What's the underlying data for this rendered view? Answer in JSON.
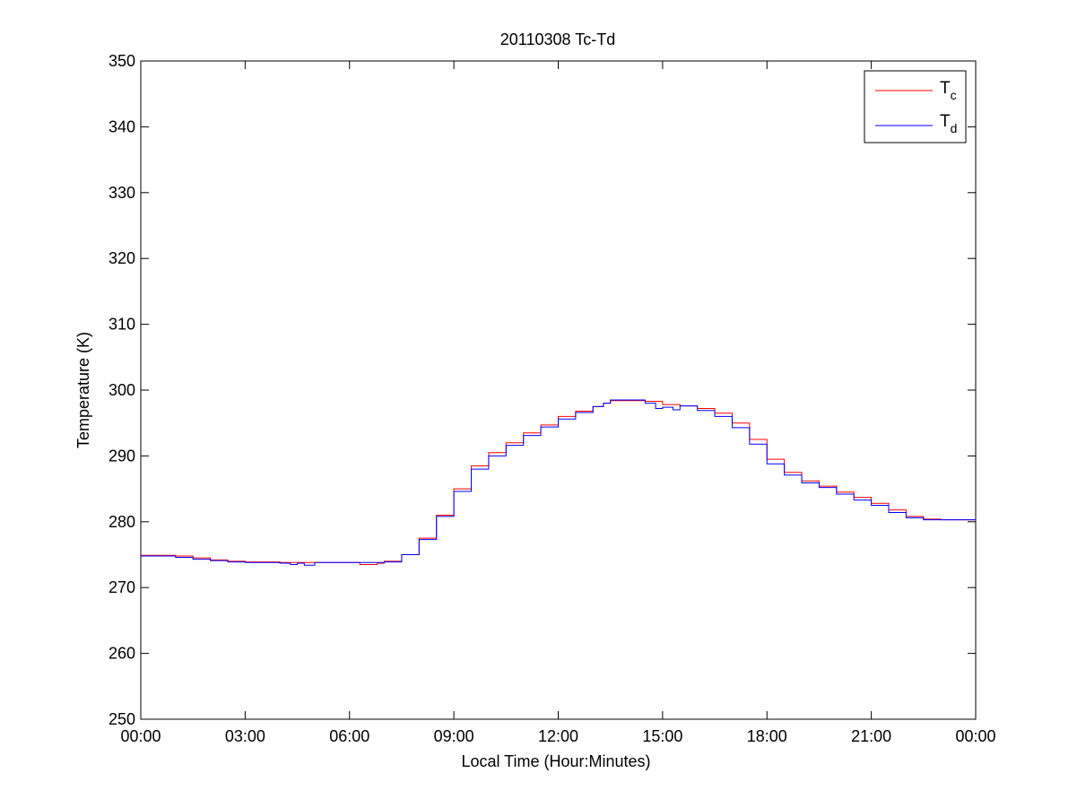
{
  "chart_data": {
    "type": "line",
    "title": "20110308 Tc-Td",
    "xlabel": "Local Time (Hour:Minutes)",
    "ylabel": "Temperature (K)",
    "xlim": [
      0,
      24
    ],
    "ylim": [
      250,
      350
    ],
    "xticks": [
      0,
      3,
      6,
      9,
      12,
      15,
      18,
      21,
      24
    ],
    "xtick_labels": [
      "00:00",
      "03:00",
      "06:00",
      "09:00",
      "12:00",
      "15:00",
      "18:00",
      "21:00",
      "00:00"
    ],
    "yticks": [
      250,
      260,
      270,
      280,
      290,
      300,
      310,
      320,
      330,
      340,
      350
    ],
    "ytick_labels": [
      "250",
      "260",
      "270",
      "280",
      "290",
      "300",
      "310",
      "320",
      "330",
      "340",
      "350"
    ],
    "grid": false,
    "legend_position": "top-right",
    "series": [
      {
        "name": "Tc",
        "legend_main": "T",
        "legend_sub": "c",
        "color": "#ff0000",
        "x": [
          0,
          0.5,
          1.0,
          1.5,
          2.0,
          2.5,
          3.0,
          4.0,
          5.0,
          6.0,
          6.3,
          6.8,
          7.0,
          7.5,
          8.0,
          8.5,
          9.0,
          9.5,
          10.0,
          10.5,
          11.0,
          11.5,
          12.0,
          12.5,
          13.0,
          13.3,
          13.5,
          14.0,
          14.5,
          15.0,
          15.5,
          16.0,
          16.5,
          17.0,
          17.5,
          18.0,
          18.5,
          19.0,
          19.5,
          20.0,
          20.5,
          21.0,
          21.5,
          22.0,
          22.5,
          23.0,
          23.5,
          24.0
        ],
        "y": [
          274.9,
          274.9,
          274.8,
          274.5,
          274.2,
          274.0,
          273.9,
          273.8,
          273.8,
          273.8,
          273.5,
          273.7,
          274.0,
          275.0,
          277.5,
          281.0,
          285.0,
          288.5,
          290.5,
          292.0,
          293.5,
          294.7,
          296.0,
          296.8,
          297.5,
          298.0,
          298.4,
          298.4,
          298.3,
          297.8,
          297.6,
          297.2,
          296.5,
          295.0,
          292.5,
          289.5,
          287.5,
          286.2,
          285.4,
          284.5,
          283.7,
          282.8,
          281.8,
          280.8,
          280.4,
          280.3,
          280.3,
          280.2
        ]
      },
      {
        "name": "Td",
        "legend_main": "T",
        "legend_sub": "d",
        "color": "#0000ff",
        "x": [
          0,
          0.5,
          1.0,
          1.5,
          2.0,
          2.5,
          3.0,
          4.0,
          4.3,
          4.5,
          4.7,
          5.0,
          6.0,
          6.3,
          6.8,
          7.0,
          7.5,
          8.0,
          8.5,
          9.0,
          9.5,
          10.0,
          10.5,
          11.0,
          11.5,
          12.0,
          12.5,
          13.0,
          13.3,
          13.5,
          14.0,
          14.5,
          14.8,
          15.0,
          15.3,
          15.5,
          16.0,
          16.5,
          17.0,
          17.5,
          18.0,
          18.5,
          19.0,
          19.5,
          20.0,
          20.5,
          21.0,
          21.5,
          22.0,
          22.5,
          23.0,
          23.5,
          24.0
        ],
        "y": [
          274.8,
          274.8,
          274.6,
          274.3,
          274.1,
          273.9,
          273.8,
          273.7,
          273.5,
          273.7,
          273.4,
          273.8,
          273.8,
          273.8,
          273.8,
          273.9,
          275.0,
          277.3,
          280.8,
          284.6,
          288.0,
          290.0,
          291.6,
          293.1,
          294.4,
          295.6,
          296.6,
          297.5,
          298.0,
          298.5,
          298.5,
          298.0,
          297.2,
          297.4,
          297.0,
          297.6,
          296.9,
          296.0,
          294.3,
          291.8,
          288.8,
          287.1,
          285.9,
          285.2,
          284.2,
          283.3,
          282.5,
          281.4,
          280.6,
          280.3,
          280.3,
          280.3,
          280.3
        ]
      }
    ]
  }
}
